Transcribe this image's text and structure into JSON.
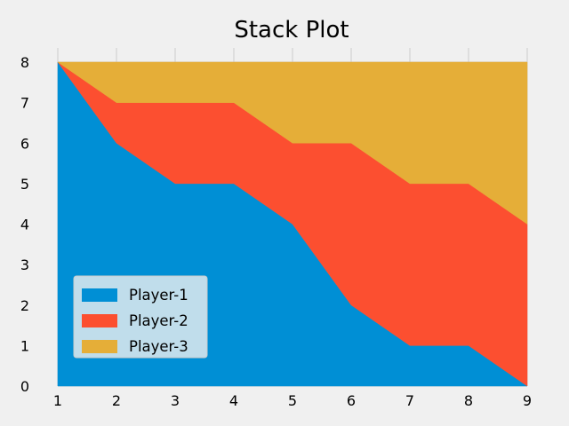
{
  "chart_data": {
    "type": "area",
    "stacked": true,
    "title": "Stack Plot",
    "xlabel": "",
    "ylabel": "",
    "x": [
      1,
      2,
      3,
      4,
      5,
      6,
      7,
      8,
      9
    ],
    "xlim": [
      1,
      9
    ],
    "ylim": [
      0,
      8
    ],
    "xticks": [
      "1",
      "2",
      "3",
      "4",
      "5",
      "6",
      "7",
      "8",
      "9"
    ],
    "yticks": [
      "0",
      "1",
      "2",
      "3",
      "4",
      "5",
      "6",
      "7",
      "8"
    ],
    "grid": true,
    "legend_position": "lower-left",
    "series": [
      {
        "name": "Player-1",
        "color": "#008fd5",
        "values": [
          8,
          6,
          5,
          5,
          4,
          2,
          1,
          1,
          0
        ]
      },
      {
        "name": "Player-2",
        "color": "#fc4f30",
        "values": [
          0,
          1,
          2,
          2,
          2,
          4,
          4,
          4,
          4
        ]
      },
      {
        "name": "Player-3",
        "color": "#e5ae38",
        "values": [
          0,
          1,
          1,
          1,
          2,
          2,
          3,
          3,
          4
        ]
      }
    ]
  }
}
